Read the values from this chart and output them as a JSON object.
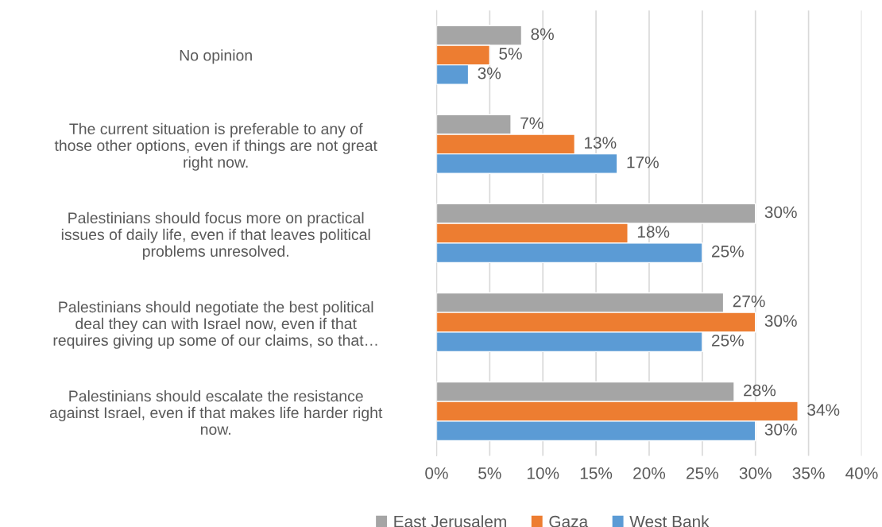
{
  "chart_data": {
    "type": "bar",
    "orientation": "horizontal",
    "categories": [
      "No opinion",
      "The current situation is preferable to any of\nthose other options, even if things are not great\nright now.",
      "Palestinians should focus more on practical\nissues of daily life, even if that leaves political\nproblems unresolved.",
      "Palestinians should negotiate the best political\ndeal they can with Israel now, even if that\nrequires giving up some of our claims, so that…",
      "Palestinians should escalate the resistance\nagainst Israel, even if that makes life harder right\nnow."
    ],
    "series": [
      {
        "name": "East Jerusalem",
        "color": "#a5a5a5",
        "values": [
          8,
          7,
          30,
          27,
          28
        ],
        "value_labels": [
          "8%",
          "7%",
          "30%",
          "27%",
          "28%"
        ]
      },
      {
        "name": "Gaza",
        "color": "#ed7d31",
        "values": [
          5,
          13,
          18,
          30,
          34
        ],
        "value_labels": [
          "5%",
          "13%",
          "18%",
          "30%",
          "34%"
        ]
      },
      {
        "name": "West Bank",
        "color": "#5b9bd5",
        "values": [
          3,
          17,
          25,
          25,
          30
        ],
        "value_labels": [
          "3%",
          "17%",
          "25%",
          "25%",
          "30%"
        ]
      }
    ],
    "xlim": [
      0,
      40
    ],
    "xticks": [
      {
        "value": 0,
        "label": "0%"
      },
      {
        "value": 5,
        "label": "5%"
      },
      {
        "value": 10,
        "label": "10%"
      },
      {
        "value": 15,
        "label": "15%"
      },
      {
        "value": 20,
        "label": "20%"
      },
      {
        "value": 25,
        "label": "25%"
      },
      {
        "value": 30,
        "label": "30%"
      },
      {
        "value": 35,
        "label": "35%"
      },
      {
        "value": 40,
        "label": "40%"
      }
    ],
    "grid": "x",
    "legend": "bottom"
  }
}
